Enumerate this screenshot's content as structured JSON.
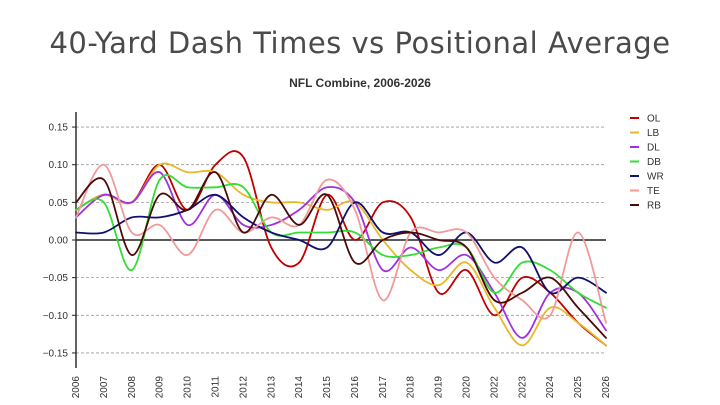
{
  "chart_data": {
    "type": "line",
    "title": "40-Yard Dash Times vs Positional Average",
    "subtitle": "NFL Combine, 2006-2026",
    "xlabel": "",
    "ylabel": "",
    "x": [
      "2006",
      "2007",
      "2008",
      "2009",
      "2010",
      "2011",
      "2012",
      "2013",
      "2014",
      "2015",
      "2016",
      "2017",
      "2018",
      "2019",
      "2020",
      "2022",
      "2023",
      "2024",
      "2025",
      "2026"
    ],
    "yticks": [
      "0.15",
      "0.10",
      "0.05",
      "0.00",
      "−0.05",
      "−0.10",
      "−0.15"
    ],
    "ytick_values": [
      0.15,
      0.1,
      0.05,
      0.0,
      -0.05,
      -0.1,
      -0.15
    ],
    "ylim": [
      -0.17,
      0.17
    ],
    "grid": "horizontal dashed",
    "legend_position": "right",
    "series": [
      {
        "name": "OL",
        "color": "#c00000",
        "values": [
          0.04,
          0.06,
          0.05,
          0.1,
          0.04,
          0.1,
          0.11,
          -0.01,
          -0.03,
          0.06,
          0.0,
          0.05,
          0.03,
          -0.07,
          -0.04,
          -0.1,
          -0.05,
          -0.07,
          -0.11,
          -0.14
        ]
      },
      {
        "name": "LB",
        "color": "#e8b828",
        "values": [
          0.04,
          0.06,
          0.05,
          0.1,
          0.09,
          0.09,
          0.06,
          0.05,
          0.05,
          0.04,
          0.05,
          0.0,
          -0.04,
          -0.06,
          -0.03,
          -0.09,
          -0.14,
          -0.09,
          -0.11,
          -0.14
        ]
      },
      {
        "name": "DL",
        "color": "#a030e0",
        "values": [
          0.03,
          0.06,
          0.05,
          0.09,
          0.02,
          0.06,
          0.02,
          0.02,
          0.04,
          0.07,
          0.05,
          -0.04,
          -0.01,
          -0.04,
          -0.02,
          -0.07,
          -0.13,
          -0.07,
          -0.07,
          -0.12
        ]
      },
      {
        "name": "DB",
        "color": "#33dd33",
        "values": [
          0.04,
          0.05,
          -0.04,
          0.08,
          0.07,
          0.07,
          0.07,
          0.01,
          0.01,
          0.01,
          0.01,
          -0.02,
          -0.02,
          -0.01,
          -0.01,
          -0.07,
          -0.03,
          -0.04,
          -0.07,
          -0.09
        ]
      },
      {
        "name": "WR",
        "color": "#10106e",
        "values": [
          0.01,
          0.01,
          0.03,
          0.03,
          0.04,
          0.06,
          0.03,
          0.01,
          0.0,
          -0.01,
          0.05,
          0.01,
          0.01,
          -0.02,
          0.01,
          -0.03,
          -0.01,
          -0.07,
          -0.05,
          -0.07
        ]
      },
      {
        "name": "TE",
        "color": "#f09a9a",
        "values": [
          0.03,
          0.1,
          0.01,
          0.02,
          -0.02,
          0.04,
          0.01,
          0.03,
          0.02,
          0.08,
          0.04,
          -0.08,
          0.01,
          0.01,
          0.01,
          -0.05,
          -0.08,
          -0.1,
          0.01,
          -0.11
        ]
      },
      {
        "name": "RB",
        "color": "#4a0a0a",
        "values": [
          0.05,
          0.08,
          -0.02,
          0.06,
          0.04,
          0.09,
          0.01,
          0.06,
          0.02,
          0.06,
          -0.03,
          0.0,
          0.01,
          0.0,
          -0.01,
          -0.08,
          -0.07,
          -0.05,
          -0.09,
          -0.13
        ]
      }
    ]
  }
}
